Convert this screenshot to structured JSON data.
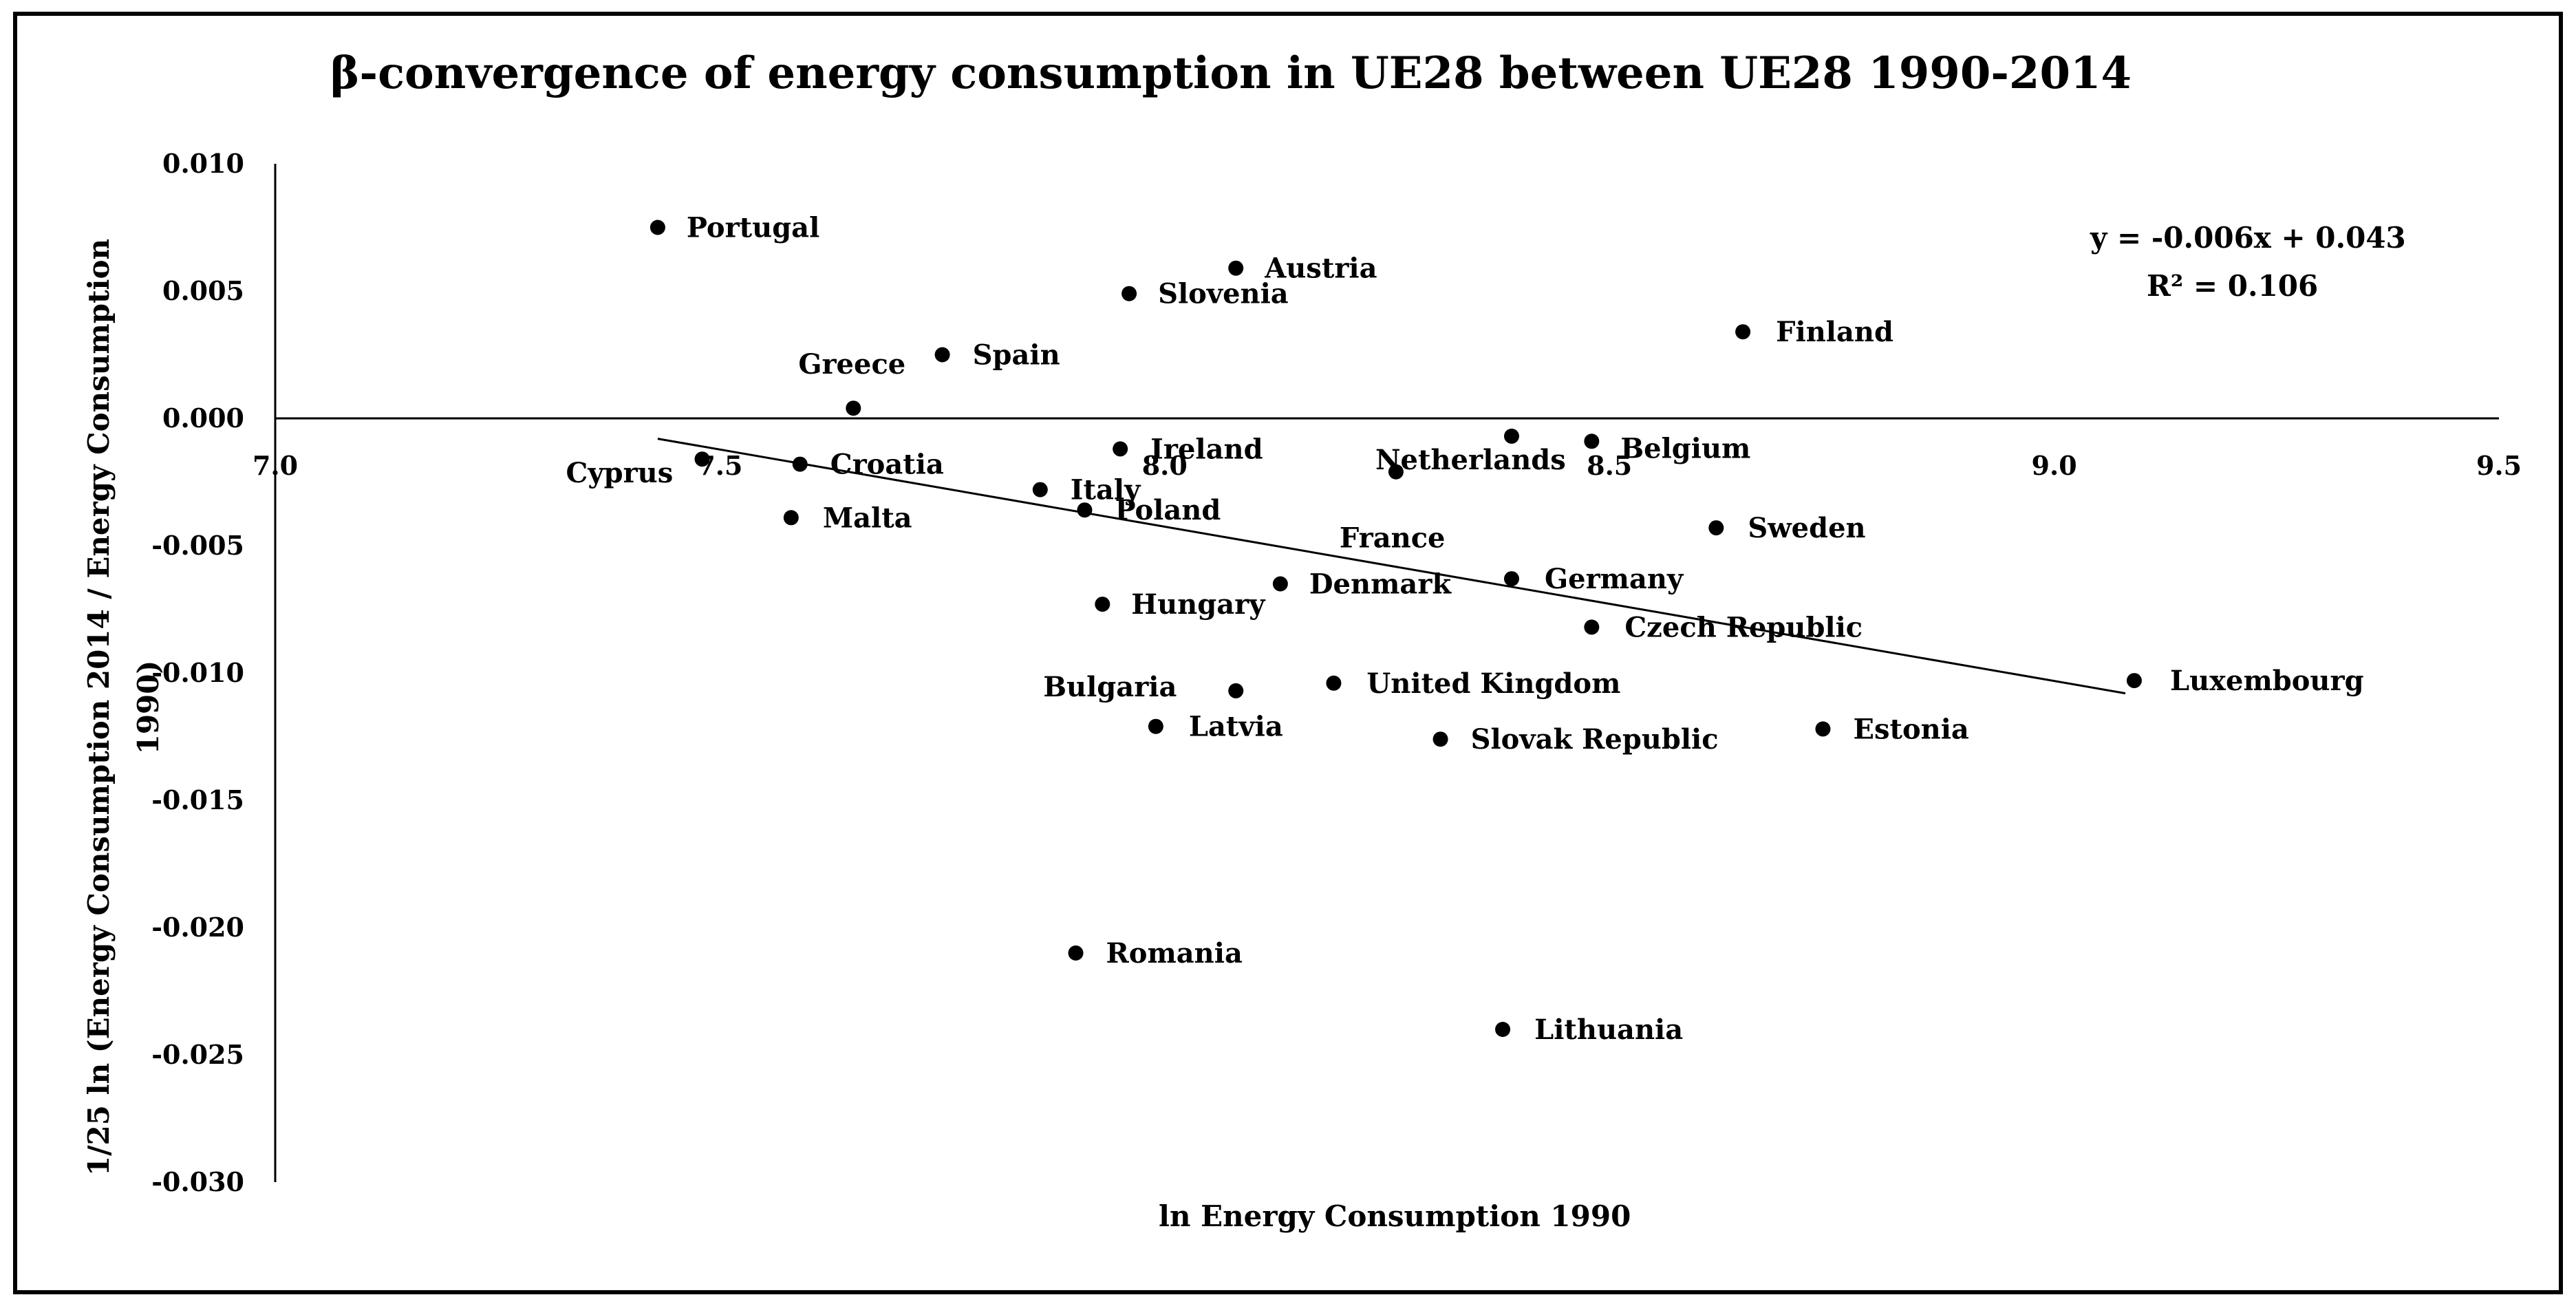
{
  "chart_data": {
    "type": "scatter",
    "title": "β-convergence of energy consumption in UE28 between UE28 1990-2014",
    "xlabel": "ln Energy Consumption 1990",
    "ylabel_line1": "1/25 ln (Energy Consumption 2014 / Energy Consumption",
    "ylabel_line2": "1990)",
    "xlim": [
      7.0,
      9.5
    ],
    "ylim": [
      -0.03,
      0.01
    ],
    "x_ticks": [
      "7.0",
      "7.5",
      "8.0",
      "8.5",
      "9.0",
      "9.5"
    ],
    "y_ticks": [
      "0.010",
      "0.005",
      "0.000",
      "-0.005",
      "-0.010",
      "-0.015",
      "-0.020",
      "-0.025",
      "-0.030"
    ],
    "trendline": {
      "slope": -0.006,
      "intercept": 0.043,
      "x_start": 7.43,
      "x_end": 9.08,
      "y_start": -0.0008,
      "y_end": -0.0108,
      "equation": "y = -0.006x + 0.043",
      "r_squared": "R² = 0.106"
    },
    "points": [
      {
        "name": "Portugal",
        "x": 7.43,
        "y": 0.0075
      },
      {
        "name": "Austria",
        "x": 8.08,
        "y": 0.0059
      },
      {
        "name": "Slovenia",
        "x": 7.96,
        "y": 0.0049
      },
      {
        "name": "Finland",
        "x": 8.65,
        "y": 0.0034
      },
      {
        "name": "Spain",
        "x": 7.75,
        "y": 0.0025
      },
      {
        "name": "Greece",
        "x": 7.65,
        "y": 0.0004
      },
      {
        "name": "Netherlands",
        "x": 8.39,
        "y": -0.0007
      },
      {
        "name": "Belgium",
        "x": 8.48,
        "y": -0.0009
      },
      {
        "name": "Ireland",
        "x": 7.95,
        "y": -0.0012
      },
      {
        "name": "Cyprus",
        "x": 7.48,
        "y": -0.0016
      },
      {
        "name": "Croatia",
        "x": 7.59,
        "y": -0.0018
      },
      {
        "name": "France",
        "x": 8.26,
        "y": -0.0021
      },
      {
        "name": "Italy",
        "x": 7.86,
        "y": -0.0028
      },
      {
        "name": "Poland",
        "x": 7.91,
        "y": -0.0036
      },
      {
        "name": "Malta",
        "x": 7.58,
        "y": -0.0039
      },
      {
        "name": "Sweden",
        "x": 8.62,
        "y": -0.0043
      },
      {
        "name": "Germany",
        "x": 8.39,
        "y": -0.0063
      },
      {
        "name": "Denmark",
        "x": 8.13,
        "y": -0.0065
      },
      {
        "name": "Hungary",
        "x": 7.93,
        "y": -0.0073
      },
      {
        "name": "Czech Republic",
        "x": 8.48,
        "y": -0.0082
      },
      {
        "name": "Luxembourg",
        "x": 9.09,
        "y": -0.0103
      },
      {
        "name": "United Kingdom",
        "x": 8.19,
        "y": -0.0104
      },
      {
        "name": "Bulgaria",
        "x": 8.08,
        "y": -0.0107
      },
      {
        "name": "Latvia",
        "x": 7.99,
        "y": -0.0121
      },
      {
        "name": "Estonia",
        "x": 8.74,
        "y": -0.0122
      },
      {
        "name": "Slovak Republic",
        "x": 8.31,
        "y": -0.0126
      },
      {
        "name": "Romania",
        "x": 7.9,
        "y": -0.021
      },
      {
        "name": "Lithuania",
        "x": 8.38,
        "y": -0.024
      }
    ]
  }
}
